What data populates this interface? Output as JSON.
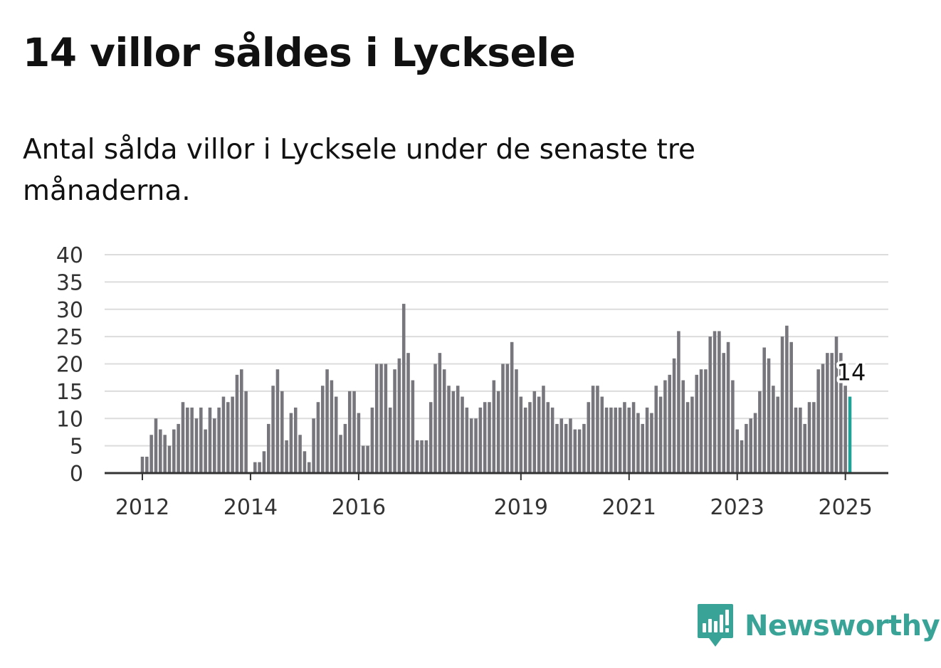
{
  "title": "14 villor såldes i Lycksele",
  "subtitle": "Antal sålda villor i Lycksele under de senaste tre månaderna.",
  "brand": {
    "name": "Newsworthy",
    "logo_icon": "bar-chart-speech-bubble-icon",
    "color": "#3aa398"
  },
  "chart_data": {
    "type": "bar",
    "x_start": "2012-01",
    "x_interval": "1 month",
    "values": [
      3,
      3,
      7,
      10,
      8,
      7,
      5,
      8,
      9,
      13,
      12,
      12,
      10,
      12,
      8,
      12,
      10,
      12,
      14,
      13,
      14,
      18,
      19,
      15,
      null,
      2,
      2,
      4,
      9,
      16,
      19,
      15,
      6,
      11,
      12,
      7,
      4,
      2,
      10,
      13,
      16,
      19,
      17,
      14,
      7,
      9,
      15,
      15,
      11,
      5,
      5,
      12,
      20,
      20,
      20,
      12,
      19,
      21,
      31,
      22,
      17,
      6,
      6,
      6,
      13,
      20,
      22,
      19,
      16,
      15,
      16,
      14,
      12,
      10,
      10,
      12,
      13,
      13,
      17,
      15,
      20,
      20,
      24,
      19,
      14,
      12,
      13,
      15,
      14,
      16,
      13,
      12,
      9,
      10,
      9,
      10,
      8,
      8,
      9,
      13,
      16,
      16,
      14,
      12,
      12,
      12,
      12,
      13,
      12,
      13,
      11,
      9,
      12,
      11,
      16,
      14,
      17,
      18,
      21,
      26,
      17,
      13,
      14,
      18,
      19,
      19,
      25,
      26,
      26,
      22,
      24,
      17,
      8,
      6,
      9,
      10,
      11,
      15,
      23,
      21,
      16,
      14,
      25,
      27,
      24,
      12,
      12,
      9,
      13,
      13,
      19,
      20,
      22,
      22,
      25,
      22,
      16,
      14
    ],
    "highlight_last": true,
    "last_value_label": "14",
    "x_tick_labels": [
      "2012",
      "2014",
      "2016",
      "2019",
      "2021",
      "2023",
      "2025"
    ],
    "y_ticks": [
      0,
      5,
      10,
      15,
      20,
      25,
      30,
      35,
      40
    ],
    "ylim": [
      0,
      40
    ],
    "grid": true,
    "bar_color": "#77767c",
    "highlight_color": "#1fa398",
    "title": "",
    "xlabel": "",
    "ylabel": ""
  }
}
